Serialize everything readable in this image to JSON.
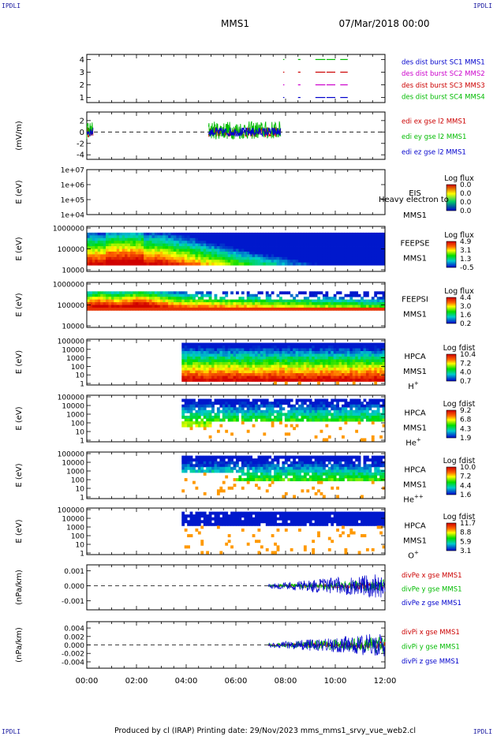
{
  "corners": {
    "tl": "IPDLI",
    "tr": "IPDLI",
    "bl": "IPDLI",
    "br": "IPDLI"
  },
  "header": {
    "spacecraft": "MMS1",
    "datetime": "07/Mar/2018 00:00"
  },
  "footer": {
    "text": "Produced by cl (IRAP)   Printing date: 29/Nov/2023   mms_mms1_srvy_vue_web2.cl"
  },
  "colors": {
    "red": "#cc0000",
    "green": "#00bb00",
    "blue": "#0000cc",
    "magenta": "#cc00cc",
    "dashed": "#000000"
  },
  "chart_data": [
    {
      "type": "line",
      "name": "burst",
      "x": {
        "ticks": [
          "00:00",
          "02:00",
          "04:00",
          "06:00",
          "08:00",
          "10:00",
          "12:00"
        ],
        "range_hours": [
          0,
          12
        ]
      },
      "ylim": [
        0.6,
        4.4
      ],
      "yticks": [
        "1",
        "2",
        "3",
        "4"
      ],
      "ylabel": "",
      "legend": [
        {
          "text": "des dist burst SC1 MMS1",
          "color": "#0000cc"
        },
        {
          "text": "des dist burst SC2 MMS2",
          "color": "#cc00cc"
        },
        {
          "text": "des dist burst SC3 MMS3",
          "color": "#cc0000"
        },
        {
          "text": "des dist burst SC4 MMS4",
          "color": "#00bb00"
        }
      ],
      "series": [
        {
          "level": 4,
          "color": "#00bb00",
          "segments": [
            [
              7.9,
              7.95
            ],
            [
              8.5,
              8.6
            ],
            [
              9.2,
              9.6
            ],
            [
              9.65,
              10.0
            ],
            [
              10.2,
              10.5
            ]
          ]
        },
        {
          "level": 3,
          "color": "#cc0000",
          "segments": [
            [
              7.9,
              7.95
            ],
            [
              8.5,
              8.6
            ],
            [
              9.2,
              9.6
            ],
            [
              9.65,
              10.0
            ],
            [
              10.2,
              10.5
            ]
          ]
        },
        {
          "level": 2,
          "color": "#cc00cc",
          "segments": [
            [
              7.9,
              7.95
            ],
            [
              8.5,
              8.6
            ],
            [
              9.2,
              9.6
            ],
            [
              9.65,
              10.0
            ],
            [
              10.2,
              10.5
            ]
          ]
        },
        {
          "level": 1,
          "color": "#0000cc",
          "segments": [
            [
              7.9,
              7.95
            ],
            [
              8.5,
              8.6
            ],
            [
              9.2,
              9.6
            ],
            [
              9.65,
              10.0
            ],
            [
              10.2,
              10.5
            ]
          ]
        }
      ]
    },
    {
      "type": "line",
      "name": "edi",
      "ylim": [
        -4.8,
        3.5
      ],
      "yticks": [
        "2",
        "0",
        "-2",
        "-4"
      ],
      "ylabel": "(mV/m)",
      "legend": [
        {
          "text": "edi ex gse l2 MMS1",
          "color": "#cc0000"
        },
        {
          "text": "edi ey gse l2 MMS1",
          "color": "#00bb00"
        },
        {
          "text": "edi ez gse l2 MMS1",
          "color": "#0000cc"
        }
      ],
      "active_ranges_hours": [
        [
          0,
          0.25
        ],
        [
          4.9,
          7.8
        ]
      ]
    },
    {
      "type": "heatmap",
      "name": "eis",
      "yticks": [
        "1e+07",
        "1e+06",
        "1e+05",
        "1e+04"
      ],
      "ylabel": "E (eV)",
      "labels": [
        "EIS",
        "MMS1"
      ],
      "overlay_text": "Heavy electron to",
      "colorbar": {
        "title": "Log flux",
        "ticks": [
          "0.0",
          "0.0",
          "0.0",
          "0.0"
        ]
      },
      "data": "empty"
    },
    {
      "type": "heatmap",
      "name": "feepse",
      "yticks": [
        "1000000",
        "100000",
        "10000"
      ],
      "ylabel": "E (eV)",
      "labels": [
        "FEEPSE",
        "MMS1"
      ],
      "colorbar": {
        "title": "Log flux",
        "ticks": [
          "4.9",
          "3.1",
          "1.3",
          "-0.5"
        ]
      }
    },
    {
      "type": "heatmap",
      "name": "feepsi",
      "yticks": [
        "1000000",
        "100000",
        "10000"
      ],
      "ylabel": "E (eV)",
      "labels": [
        "FEEPSI",
        "MMS1"
      ],
      "colorbar": {
        "title": "Log flux",
        "ticks": [
          "4.4",
          "3.0",
          "1.6",
          "0.2"
        ]
      }
    },
    {
      "type": "heatmap",
      "name": "hpca_h",
      "yticks": [
        "100000",
        "10000",
        "1000",
        "100",
        "10",
        "1"
      ],
      "ylabel": "E (eV)",
      "labels": [
        "HPCA",
        "MMS1",
        "H"
      ],
      "species_sup": "+",
      "colorbar": {
        "title": "Log fdist",
        "ticks": [
          "10.4",
          "7.2",
          "4.0",
          "0.7"
        ]
      },
      "start_hours": 3.8
    },
    {
      "type": "heatmap",
      "name": "hpca_he",
      "yticks": [
        "100000",
        "10000",
        "1000",
        "100",
        "10",
        "1"
      ],
      "ylabel": "E (eV)",
      "labels": [
        "HPCA",
        "MMS1",
        "He"
      ],
      "species_sup": "+",
      "colorbar": {
        "title": "Log fdist",
        "ticks": [
          "9.2",
          "6.8",
          "4.3",
          "1.9"
        ]
      },
      "start_hours": 3.8
    },
    {
      "type": "heatmap",
      "name": "hpca_he2",
      "yticks": [
        "100000",
        "10000",
        "1000",
        "100",
        "10",
        "1"
      ],
      "ylabel": "E (eV)",
      "labels": [
        "HPCA",
        "MMS1",
        "He"
      ],
      "species_sup": "++",
      "colorbar": {
        "title": "Log fdist",
        "ticks": [
          "10.0",
          "7.2",
          "4.4",
          "1.6"
        ]
      },
      "start_hours": 3.8
    },
    {
      "type": "heatmap",
      "name": "hpca_o",
      "yticks": [
        "100000",
        "10000",
        "1000",
        "100",
        "10",
        "1"
      ],
      "ylabel": "E (eV)",
      "labels": [
        "HPCA",
        "MMS1",
        "O"
      ],
      "species_sup": "+",
      "colorbar": {
        "title": "Log fdist",
        "ticks": [
          "11.7",
          "8.8",
          "5.9",
          "3.1"
        ]
      },
      "start_hours": 3.8
    },
    {
      "type": "line",
      "name": "divpe",
      "ylim": [
        -0.0016,
        0.0014
      ],
      "yticks": [
        "0.001",
        "0.000",
        "-0.001"
      ],
      "ylabel": "(nPa/km)",
      "legend": [
        {
          "text": "divPe x gse MMS1",
          "color": "#cc0000"
        },
        {
          "text": "divPe y gse MMS1",
          "color": "#00bb00"
        },
        {
          "text": "divPe z gse MMS1",
          "color": "#0000cc"
        }
      ],
      "active_ranges_hours": [
        [
          7.3,
          12.0
        ]
      ]
    },
    {
      "type": "line",
      "name": "divpi",
      "ylim": [
        -0.0055,
        0.0055
      ],
      "yticks": [
        "0.004",
        "0.002",
        "0.000",
        "-0.002",
        "-0.004"
      ],
      "ylabel": "(nPa/km)",
      "legend": [
        {
          "text": "divPi x gse MMS1",
          "color": "#cc0000"
        },
        {
          "text": "divPi y gse MMS1",
          "color": "#00bb00"
        },
        {
          "text": "divPi z gse MMS1",
          "color": "#0000cc"
        }
      ],
      "active_ranges_hours": [
        [
          7.3,
          12.0
        ]
      ]
    }
  ]
}
